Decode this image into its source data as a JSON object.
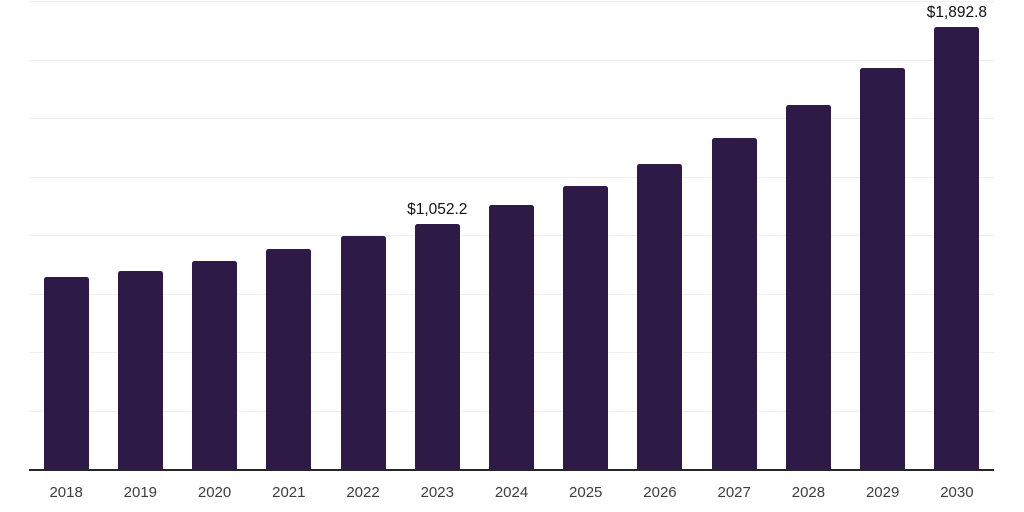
{
  "chart_data": {
    "type": "bar",
    "title": "",
    "xlabel": "",
    "ylabel": "",
    "categories": [
      "2018",
      "2019",
      "2020",
      "2021",
      "2022",
      "2023",
      "2024",
      "2025",
      "2026",
      "2027",
      "2028",
      "2029",
      "2030"
    ],
    "values": [
      825,
      850,
      893,
      944,
      1000,
      1052.2,
      1132,
      1212,
      1308,
      1419,
      1560,
      1717,
      1892.8
    ],
    "point_labels": [
      "",
      "",
      "",
      "",
      "",
      "$1,052.2",
      "",
      "",
      "",
      "",
      "",
      "",
      "$1,892.8"
    ],
    "labeled_points": [
      {
        "category": "2023",
        "label": "$1,052.2",
        "value": 1052.2
      },
      {
        "category": "2030",
        "label": "$1,892.8",
        "value": 1892.8
      }
    ],
    "ylim": [
      0,
      2000
    ],
    "gridline_step": 250,
    "grid": "horizontal",
    "legend_position": "none",
    "y_tick_labels_visible": false,
    "colors": {
      "bar": "#2e1a47",
      "gridline": "#f0f0f0",
      "axis_line": "#262626",
      "tick_label": "#3d3d3d",
      "data_label": "#111111",
      "background": "#ffffff"
    }
  }
}
